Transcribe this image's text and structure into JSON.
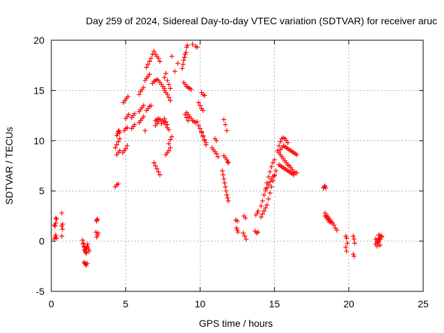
{
  "chart_data": {
    "type": "scatter",
    "title": "Day 259 of 2024, Sidereal Day-to-day VTEC variation (SDTVAR) for receiver aruc",
    "xlabel": "GPS time / hours",
    "ylabel": "SDTVAR / TECUs",
    "xlim": [
      0,
      25
    ],
    "ylim": [
      -5,
      20
    ],
    "xticks": [
      0,
      5,
      10,
      15,
      20,
      25
    ],
    "yticks": [
      -5,
      0,
      5,
      10,
      15,
      20
    ],
    "x_tick_labels": [
      "0",
      "5",
      "10",
      "15",
      "20",
      "25"
    ],
    "y_tick_labels": [
      "-5",
      "0",
      "5",
      "10",
      "15",
      "20"
    ],
    "grid": true,
    "marker": "+",
    "marker_color": "#ff0000",
    "series": [
      {
        "name": "SDTVAR",
        "x": [
          0.2,
          0.25,
          0.3,
          0.35,
          0.2,
          0.25,
          0.3,
          0.35,
          0.3,
          0.7,
          0.7,
          0.75,
          0.75,
          0.7,
          2.1,
          2.15,
          2.2,
          2.25,
          2.3,
          2.35,
          2.4,
          2.45,
          2.5,
          2.55,
          2.15,
          2.2,
          2.25,
          2.3,
          2.35,
          2.4,
          2.2,
          2.25,
          2.3,
          2.35,
          2.4,
          3.05,
          3.1,
          3.15,
          3.0,
          3.05,
          3.1,
          3.05,
          4.3,
          4.4,
          4.5,
          4.6,
          4.4,
          4.45,
          4.5,
          4.55,
          4.6,
          4.4,
          4.5,
          4.6,
          4.3,
          4.4,
          4.5,
          4.8,
          4.9,
          5.0,
          5.1,
          4.9,
          5.0,
          5.1,
          5.0,
          5.1,
          5.2,
          4.85,
          4.95,
          5.05,
          5.15,
          5.4,
          5.5,
          5.6,
          5.4,
          5.5,
          5.6,
          5.9,
          6.0,
          6.1,
          6.2,
          5.9,
          6.0,
          6.1,
          6.2,
          5.9,
          6.0,
          6.1,
          6.2,
          6.3,
          6.3,
          6.4,
          6.5,
          6.6,
          6.4,
          6.5,
          6.6,
          6.7,
          6.4,
          6.5,
          6.6,
          6.7,
          6.8,
          6.9,
          7.0,
          7.1,
          7.2,
          7.3,
          6.8,
          6.9,
          7.0,
          7.1,
          7.2,
          7.3,
          7.4,
          7.5,
          7.6,
          6.9,
          7.0,
          7.1,
          7.2,
          7.3,
          7.0,
          7.1,
          7.2,
          7.3,
          7.0,
          7.1,
          7.2,
          7.3,
          7.4,
          7.6,
          7.7,
          7.8,
          7.9,
          8.0,
          7.6,
          7.7,
          7.8,
          7.9,
          8.0,
          7.5,
          7.6,
          7.7,
          7.8,
          7.6,
          7.7,
          7.8,
          7.9,
          7.7,
          7.8,
          7.9,
          8.0,
          7.9,
          8.0,
          8.1,
          8.1,
          8.3,
          8.5,
          8.8,
          8.85,
          8.9,
          8.95,
          9.0,
          9.05,
          9.1,
          9.15,
          8.9,
          9.0,
          9.1,
          9.2,
          9.3,
          9.4,
          9.1,
          9.2,
          9.3,
          9.4,
          9.5,
          9.6,
          9.7,
          9.0,
          9.1,
          9.2,
          9.5,
          9.7,
          9.8,
          9.9,
          10.0,
          10.1,
          10.2,
          10.0,
          10.1,
          10.2,
          10.3,
          10.4,
          9.8,
          9.9,
          10.0,
          10.1,
          10.2,
          10.3,
          10.4,
          10.1,
          10.2,
          10.3,
          10.8,
          10.9,
          11.0,
          11.1,
          11.0,
          11.1,
          11.2,
          11.5,
          11.55,
          11.6,
          11.65,
          11.7,
          11.75,
          11.8,
          11.85,
          11.9,
          11.6,
          11.7,
          11.8,
          11.6,
          11.7,
          11.8,
          11.85,
          11.9,
          12.4,
          12.5,
          12.45,
          12.5,
          12.55,
          12.9,
          13.0,
          13.1,
          12.95,
          13.05,
          13.7,
          13.8,
          13.9,
          13.75,
          13.85,
          13.9,
          14.1,
          14.2,
          14.3,
          14.4,
          14.5,
          14.1,
          14.2,
          14.3,
          14.4,
          14.5,
          14.6,
          14.7,
          14.8,
          14.9,
          15.0,
          14.6,
          14.7,
          14.8,
          14.9,
          15.0,
          15.1,
          14.4,
          14.5,
          14.6,
          14.7,
          14.8,
          14.9,
          15.0,
          15.2,
          15.3,
          15.4,
          15.5,
          15.6,
          15.7,
          15.8,
          15.9,
          15.3,
          15.4,
          15.5,
          15.6,
          15.7,
          15.8,
          15.9,
          16.0,
          16.1,
          16.2,
          16.3,
          16.4,
          16.5,
          15.4,
          15.5,
          15.6,
          15.7,
          15.8,
          15.9,
          16.0,
          16.1,
          16.2,
          16.3,
          16.4,
          16.5,
          15.3,
          15.4,
          15.5,
          15.6,
          15.7,
          15.8,
          15.9,
          16.0,
          16.1,
          16.2,
          16.3,
          18.3,
          18.35,
          18.4,
          18.45,
          18.4,
          18.5,
          18.6,
          18.7,
          18.8,
          18.9,
          18.5,
          18.6,
          18.7,
          18.8,
          18.4,
          18.5,
          18.6,
          18.7,
          19.0,
          19.1,
          19.2,
          19.8,
          19.85,
          19.9,
          19.8,
          19.85,
          20.3,
          20.35,
          20.4,
          20.3,
          20.35,
          21.8,
          21.9,
          22.0,
          22.1,
          22.2,
          21.9,
          22.0,
          22.1,
          22.2,
          21.8,
          21.9,
          22.0,
          22.1,
          22.0,
          22.1
        ],
        "y": [
          0.2,
          0.4,
          0.6,
          0.3,
          1.6,
          1.5,
          1.8,
          2.2,
          2.3,
          2.8,
          1.5,
          1.7,
          1.2,
          0.5,
          0.1,
          -0.2,
          -0.5,
          -0.8,
          -1.0,
          -1.2,
          -0.6,
          -0.3,
          -0.8,
          -1.0,
          -0.3,
          -0.6,
          -0.9,
          -1.1,
          -0.7,
          -0.5,
          -2.1,
          -2.2,
          -2.3,
          -2.4,
          -2.2,
          0.4,
          0.6,
          0.8,
          0.9,
          2.1,
          2.2,
          2.0,
          9.3,
          9.6,
          9.9,
          10.2,
          10.5,
          10.7,
          10.9,
          11.0,
          10.8,
          8.6,
          8.8,
          9.0,
          5.4,
          5.6,
          5.7,
          8.8,
          9.0,
          9.2,
          9.5,
          11.0,
          11.2,
          11.3,
          12.2,
          12.4,
          12.6,
          13.8,
          14.0,
          14.2,
          14.4,
          12.3,
          12.5,
          12.7,
          11.2,
          11.4,
          11.6,
          12.9,
          13.1,
          13.3,
          13.5,
          11.8,
          12.0,
          12.2,
          12.4,
          14.6,
          14.9,
          15.1,
          15.3,
          11.0,
          16.0,
          16.2,
          16.4,
          16.6,
          13.0,
          13.2,
          13.4,
          13.5,
          17.3,
          17.6,
          17.9,
          18.2,
          18.6,
          18.9,
          18.6,
          18.4,
          18.2,
          17.9,
          15.7,
          15.9,
          16.0,
          16.1,
          16.0,
          15.8,
          15.6,
          15.4,
          15.2,
          7.8,
          7.5,
          7.2,
          6.9,
          6.6,
          12.0,
          12.1,
          12.2,
          12.1,
          11.5,
          11.7,
          11.9,
          12.1,
          11.7,
          16.3,
          16.7,
          16.0,
          15.6,
          15.2,
          15.0,
          14.8,
          14.6,
          14.3,
          14.0,
          12.0,
          12.2,
          11.9,
          11.6,
          11.8,
          11.6,
          11.3,
          11.1,
          8.6,
          8.8,
          9.0,
          9.3,
          9.7,
          10.1,
          10.4,
          18.4,
          16.9,
          17.7,
          17.2,
          17.6,
          18.0,
          18.3,
          18.6,
          18.8,
          19.3,
          19.5,
          15.8,
          15.6,
          15.4,
          15.3,
          15.2,
          15.1,
          12.8,
          12.6,
          12.4,
          12.2,
          12.0,
          11.9,
          11.8,
          12.6,
          12.3,
          12.0,
          19.6,
          19.4,
          19.3,
          13.8,
          13.5,
          13.2,
          13.0,
          11.2,
          10.8,
          10.4,
          10.0,
          9.6,
          11.9,
          11.5,
          11.2,
          10.9,
          10.5,
          10.1,
          9.8,
          14.8,
          14.6,
          14.5,
          9.3,
          9.1,
          8.9,
          8.7,
          10.2,
          10.0,
          8.4,
          7.0,
          6.6,
          6.2,
          5.8,
          5.4,
          5.0,
          4.6,
          4.3,
          4.0,
          12.1,
          11.6,
          11.0,
          8.5,
          8.3,
          8.1,
          7.9,
          7.8,
          2.1,
          2.0,
          1.3,
          1.1,
          0.9,
          0.8,
          0.5,
          0.2,
          2.5,
          2.3,
          1.0,
          0.8,
          0.9,
          2.6,
          2.8,
          3.0,
          3.5,
          4.0,
          4.6,
          5.2,
          5.8,
          2.4,
          2.7,
          3.0,
          3.3,
          3.6,
          6.4,
          6.9,
          7.4,
          7.8,
          8.1,
          4.2,
          4.8,
          5.4,
          6.0,
          6.5,
          7.0,
          5.0,
          5.3,
          5.6,
          5.9,
          6.2,
          6.4,
          6.6,
          9.0,
          9.5,
          9.9,
          10.2,
          10.3,
          10.2,
          10.0,
          9.8,
          8.8,
          8.6,
          8.4,
          8.2,
          8.0,
          7.8,
          7.6,
          7.5,
          7.3,
          7.1,
          6.9,
          6.8,
          6.8,
          9.1,
          9.3,
          9.5,
          9.4,
          9.3,
          9.2,
          9.1,
          9.0,
          8.9,
          8.8,
          8.7,
          8.6,
          7.6,
          7.5,
          7.4,
          7.3,
          7.2,
          7.1,
          7.0,
          6.9,
          6.8,
          6.7,
          6.6,
          5.3,
          5.4,
          5.5,
          5.3,
          2.8,
          2.6,
          2.4,
          2.2,
          2.0,
          1.8,
          2.6,
          2.4,
          2.2,
          1.9,
          2.5,
          2.3,
          2.1,
          1.9,
          1.6,
          1.3,
          1.1,
          -0.6,
          -1.0,
          -0.2,
          0.5,
          0.3,
          -1.3,
          -1.5,
          -0.2,
          0.5,
          0.2,
          -0.3,
          0.0,
          0.3,
          0.6,
          0.5,
          -0.5,
          -0.1,
          0.2,
          0.4,
          0.2,
          -0.2,
          0.1,
          -0.4,
          0.6,
          0.2
        ]
      }
    ]
  }
}
